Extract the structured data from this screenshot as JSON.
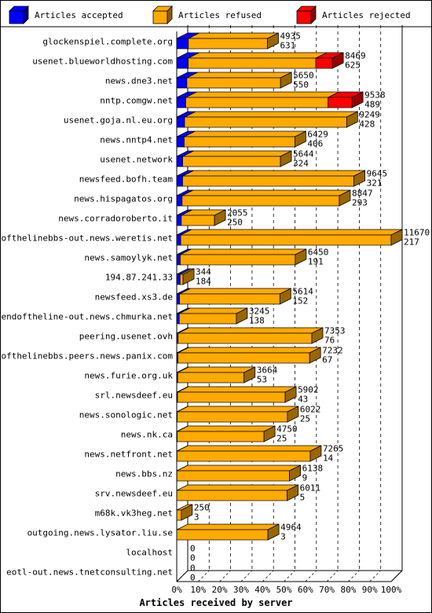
{
  "chart_data": {
    "type": "bar",
    "orientation": "horizontal",
    "stacked": true,
    "style": "3d",
    "xlabel": "Articles received by server",
    "x_ticks": [
      "0%",
      "10%",
      "20%",
      "30%",
      "40%",
      "50%",
      "60%",
      "70%",
      "80%",
      "90%",
      "100%"
    ],
    "xlim": [
      0,
      100
    ],
    "grid": "vertical-dashed",
    "legend_position": "top",
    "series": [
      {
        "name": "Articles accepted",
        "color": "#0000ff"
      },
      {
        "name": "Articles refused",
        "color": "#ffaa00"
      },
      {
        "name": "Articles rejected",
        "color": "#ff0000"
      }
    ],
    "categories": [
      "glockenspiel.complete.org",
      "usenet.blueworldhosting.com",
      "news.dne3.net",
      "nntp.comgw.net",
      "usenet.goja.nl.eu.org",
      "news.nntp4.net",
      "usenet.network",
      "newsfeed.bofh.team",
      "news.hispagatos.org",
      "news.corradoroberto.it",
      "endofthelinebbs-out.news.weretis.net",
      "news.samoylyk.net",
      "194.87.241.33",
      "newsfeed.xs3.de",
      "endoftheline-out.news.chmurka.net",
      "peering.usenet.ovh",
      "endofthelinebbs.peers.news.panix.com",
      "news.furie.org.uk",
      "srl.newsdeef.eu",
      "news.sonologic.net",
      "news.nk.ca",
      "news.netfront.net",
      "news.bbs.nz",
      "srv.newsdeef.eu",
      "m68k.vk3heg.net",
      "outgoing.news.lysator.liu.se",
      "localhost",
      "eotl-out.news.tnetconsulting.net"
    ],
    "totals": [
      4935,
      8469,
      5650,
      9538,
      9249,
      6429,
      5644,
      9645,
      8847,
      2055,
      11670,
      6450,
      344,
      5614,
      3245,
      7353,
      7232,
      3664,
      5902,
      6022,
      4750,
      7265,
      6138,
      6011,
      250,
      4964,
      0,
      0
    ],
    "accepted": [
      631,
      625,
      550,
      489,
      428,
      406,
      324,
      321,
      293,
      250,
      217,
      191,
      184,
      152,
      138,
      76,
      67,
      53,
      43,
      25,
      25,
      14,
      9,
      5,
      3,
      3,
      0,
      0
    ],
    "rejected": [
      0,
      900,
      0,
      1300,
      0,
      0,
      0,
      0,
      0,
      0,
      0,
      0,
      0,
      0,
      0,
      0,
      0,
      0,
      0,
      0,
      0,
      0,
      0,
      0,
      0,
      0,
      0,
      0
    ],
    "total_labels": [
      "4935",
      "8469",
      "5650",
      "9538",
      "9249",
      "6429",
      "5644",
      "9645",
      "8847",
      "2055",
      "11670",
      "6450",
      "344",
      "5614",
      "3245",
      "7353",
      "7232",
      "3664",
      "5902",
      "6022",
      "4750",
      "7265",
      "6138",
      "6011",
      "250",
      "4964",
      "0",
      "0"
    ],
    "accepted_labels": [
      "631",
      "625",
      "550",
      "489",
      "428",
      "406",
      "324",
      "321",
      "293",
      "250",
      "217",
      "191",
      "184",
      "152",
      "138",
      "76",
      "67",
      "53",
      "43",
      "25",
      "25",
      "14",
      "9",
      "5",
      "3",
      "3",
      "0",
      "0"
    ]
  }
}
